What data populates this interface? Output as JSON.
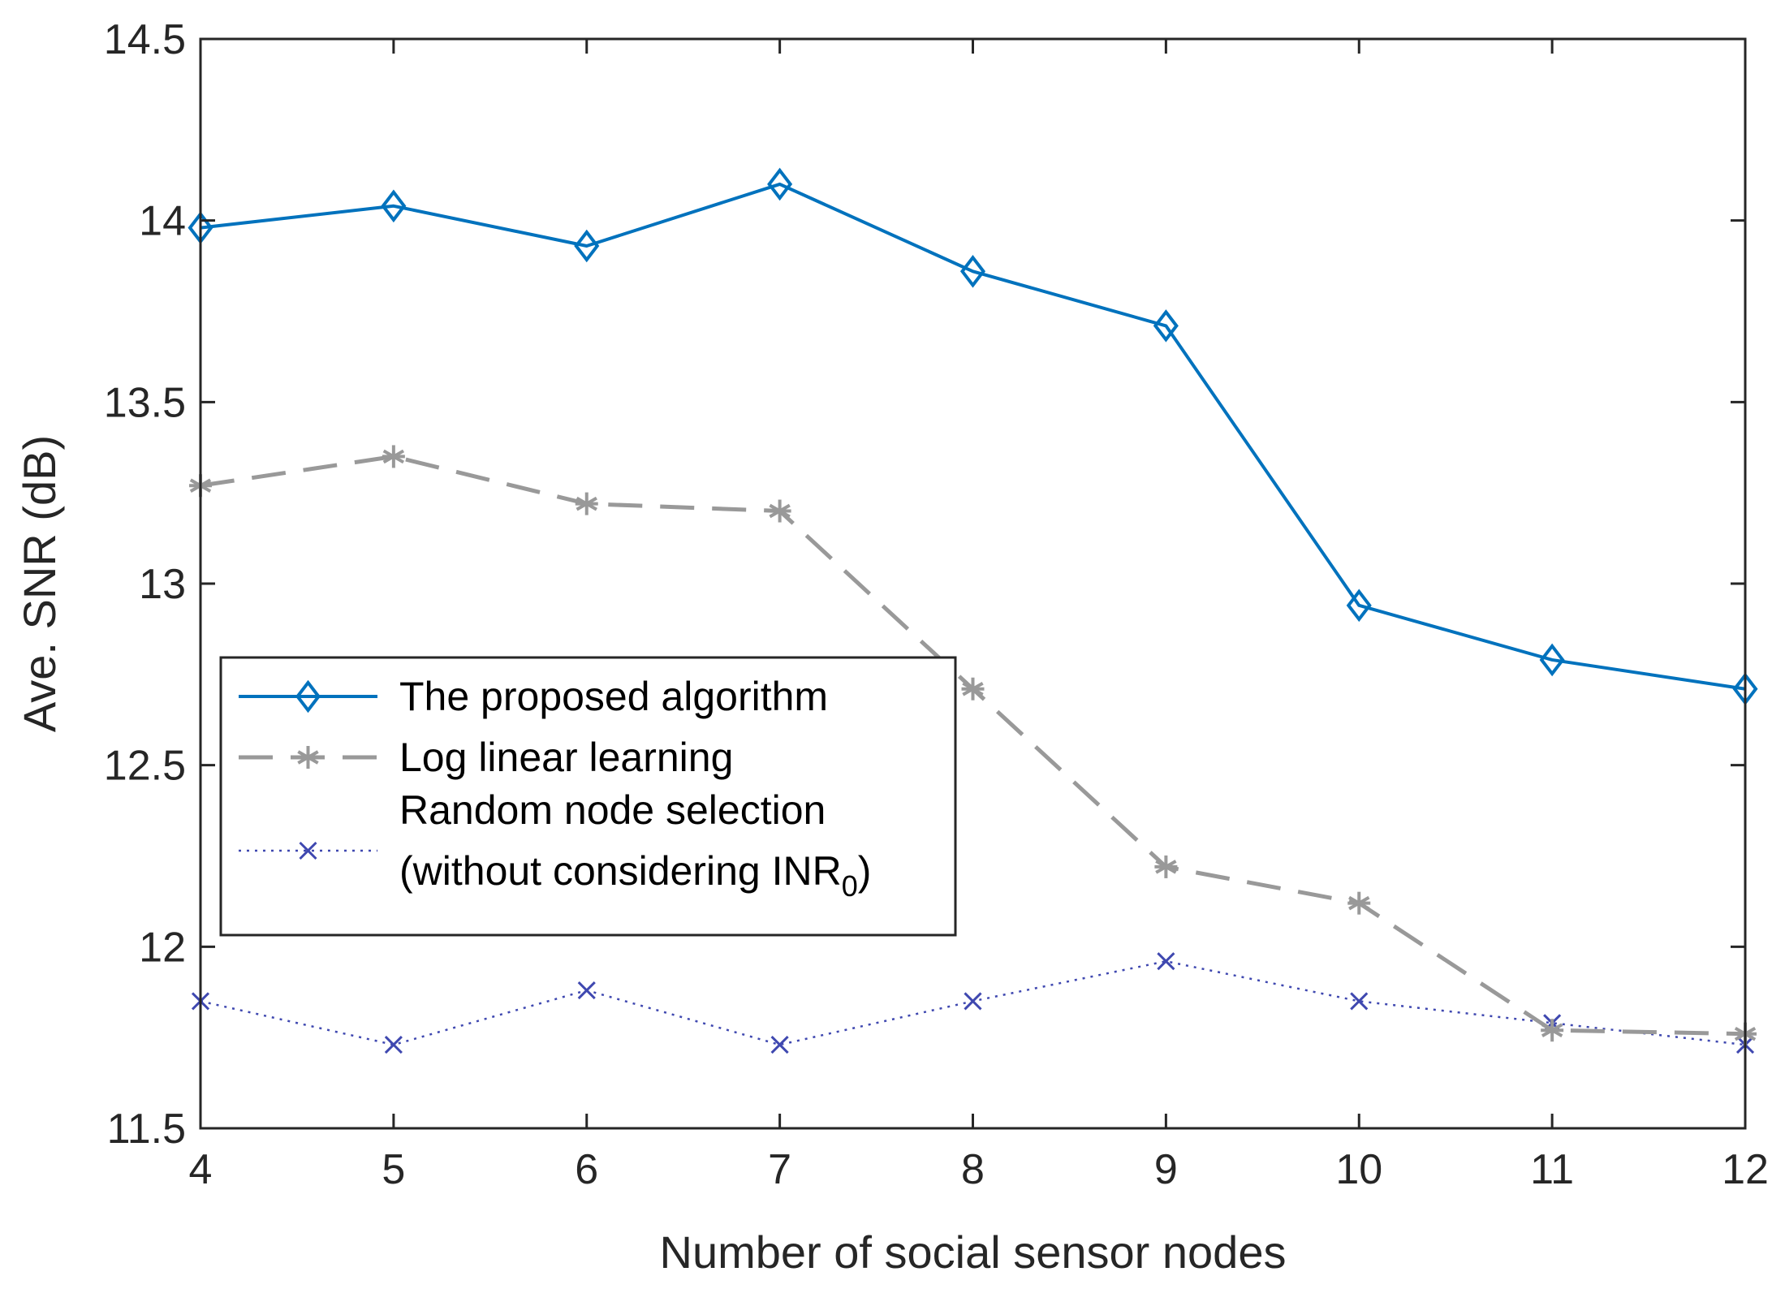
{
  "chart_data": {
    "type": "line",
    "xlabel": "Number of social sensor nodes",
    "ylabel": "Ave. SNR (dB)",
    "xlim": [
      4,
      12
    ],
    "ylim": [
      11.5,
      14.5
    ],
    "x": [
      4,
      5,
      6,
      7,
      8,
      9,
      10,
      11,
      12
    ],
    "xticks": [
      "4",
      "5",
      "6",
      "7",
      "8",
      "9",
      "10",
      "11",
      "12"
    ],
    "yticks": [
      "11.5",
      "12",
      "12.5",
      "13",
      "13.5",
      "14",
      "14.5"
    ],
    "grid": false,
    "legend_position": "middle-left",
    "series": [
      {
        "name": "The proposed algorithm",
        "color": "#0072BD",
        "line": "solid",
        "marker": "diamond",
        "values": [
          13.98,
          14.04,
          13.93,
          14.1,
          13.86,
          13.71,
          12.94,
          12.79,
          12.71
        ]
      },
      {
        "name": "Log linear learning",
        "color": "#999999",
        "line": "dashed",
        "marker": "asterisk",
        "values": [
          13.27,
          13.35,
          13.22,
          13.2,
          12.71,
          12.22,
          12.12,
          11.77,
          11.76
        ]
      },
      {
        "name_line1": "Random node selection",
        "name_line2_main": "(without considering INR",
        "name_line2_sub": "0",
        "name_line2_end": ")",
        "color": "#3F48B0",
        "line": "dotted",
        "marker": "x",
        "values": [
          11.85,
          11.73,
          11.88,
          11.73,
          11.85,
          11.96,
          11.85,
          11.79,
          11.73
        ]
      }
    ]
  }
}
